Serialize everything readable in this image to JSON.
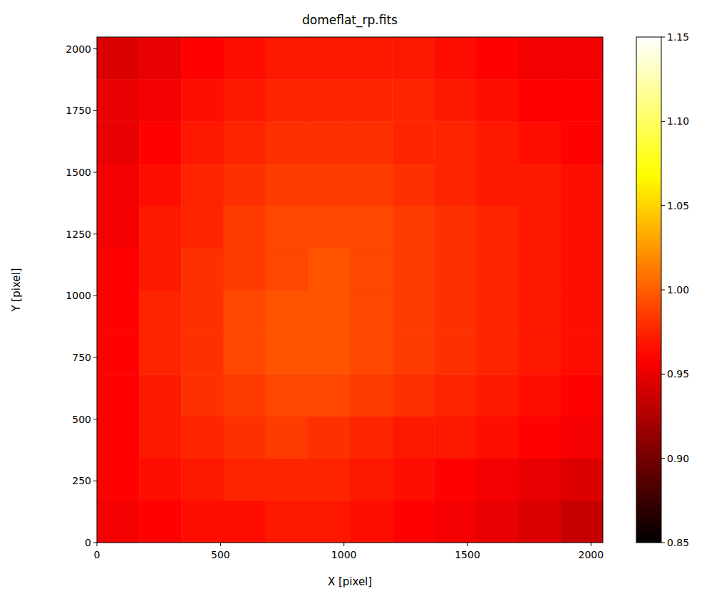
{
  "chart_data": {
    "type": "heatmap",
    "title": "domeflat_rp.fits",
    "x_label": "X [pixel]",
    "y_label": "Y [pixel]",
    "xlim": [
      0,
      2048
    ],
    "ylim": [
      0,
      2048
    ],
    "xticks": [
      0,
      500,
      1000,
      1500,
      2000
    ],
    "yticks": [
      0,
      250,
      500,
      750,
      1000,
      1250,
      1500,
      1750,
      2000
    ],
    "cells": [
      [
        0.955,
        0.96,
        0.965,
        0.965,
        0.97,
        0.97,
        0.965,
        0.96,
        0.955,
        0.95,
        0.945,
        0.935
      ],
      [
        0.96,
        0.965,
        0.97,
        0.975,
        0.975,
        0.975,
        0.97,
        0.965,
        0.96,
        0.955,
        0.95,
        0.945
      ],
      [
        0.96,
        0.97,
        0.975,
        0.98,
        0.985,
        0.98,
        0.975,
        0.97,
        0.97,
        0.965,
        0.96,
        0.955
      ],
      [
        0.96,
        0.97,
        0.98,
        0.985,
        0.99,
        0.99,
        0.985,
        0.98,
        0.975,
        0.97,
        0.965,
        0.96
      ],
      [
        0.96,
        0.975,
        0.98,
        0.99,
        0.995,
        0.995,
        0.99,
        0.985,
        0.98,
        0.975,
        0.97,
        0.965
      ],
      [
        0.96,
        0.975,
        0.98,
        0.99,
        0.995,
        0.995,
        0.99,
        0.985,
        0.98,
        0.975,
        0.97,
        0.965
      ],
      [
        0.96,
        0.97,
        0.98,
        0.985,
        0.99,
        0.995,
        0.99,
        0.985,
        0.98,
        0.975,
        0.97,
        0.965
      ],
      [
        0.955,
        0.97,
        0.975,
        0.985,
        0.99,
        0.99,
        0.99,
        0.985,
        0.98,
        0.975,
        0.97,
        0.965
      ],
      [
        0.955,
        0.965,
        0.975,
        0.98,
        0.985,
        0.985,
        0.985,
        0.98,
        0.975,
        0.97,
        0.97,
        0.965
      ],
      [
        0.95,
        0.96,
        0.97,
        0.975,
        0.98,
        0.98,
        0.98,
        0.975,
        0.975,
        0.97,
        0.965,
        0.96
      ],
      [
        0.95,
        0.955,
        0.965,
        0.97,
        0.975,
        0.975,
        0.975,
        0.975,
        0.97,
        0.965,
        0.96,
        0.96
      ],
      [
        0.945,
        0.95,
        0.96,
        0.965,
        0.97,
        0.97,
        0.97,
        0.97,
        0.965,
        0.96,
        0.955,
        0.955
      ]
    ],
    "colorbar": {
      "lim": [
        0.85,
        1.15
      ],
      "ticks": [
        0.85,
        {
          "value": 0.9,
          "label": "0.90"
        },
        0.95,
        {
          "value": 1.0,
          "label": "1.00"
        },
        1.05,
        {
          "value": 1.1,
          "label": "1.10"
        },
        1.15
      ]
    }
  }
}
